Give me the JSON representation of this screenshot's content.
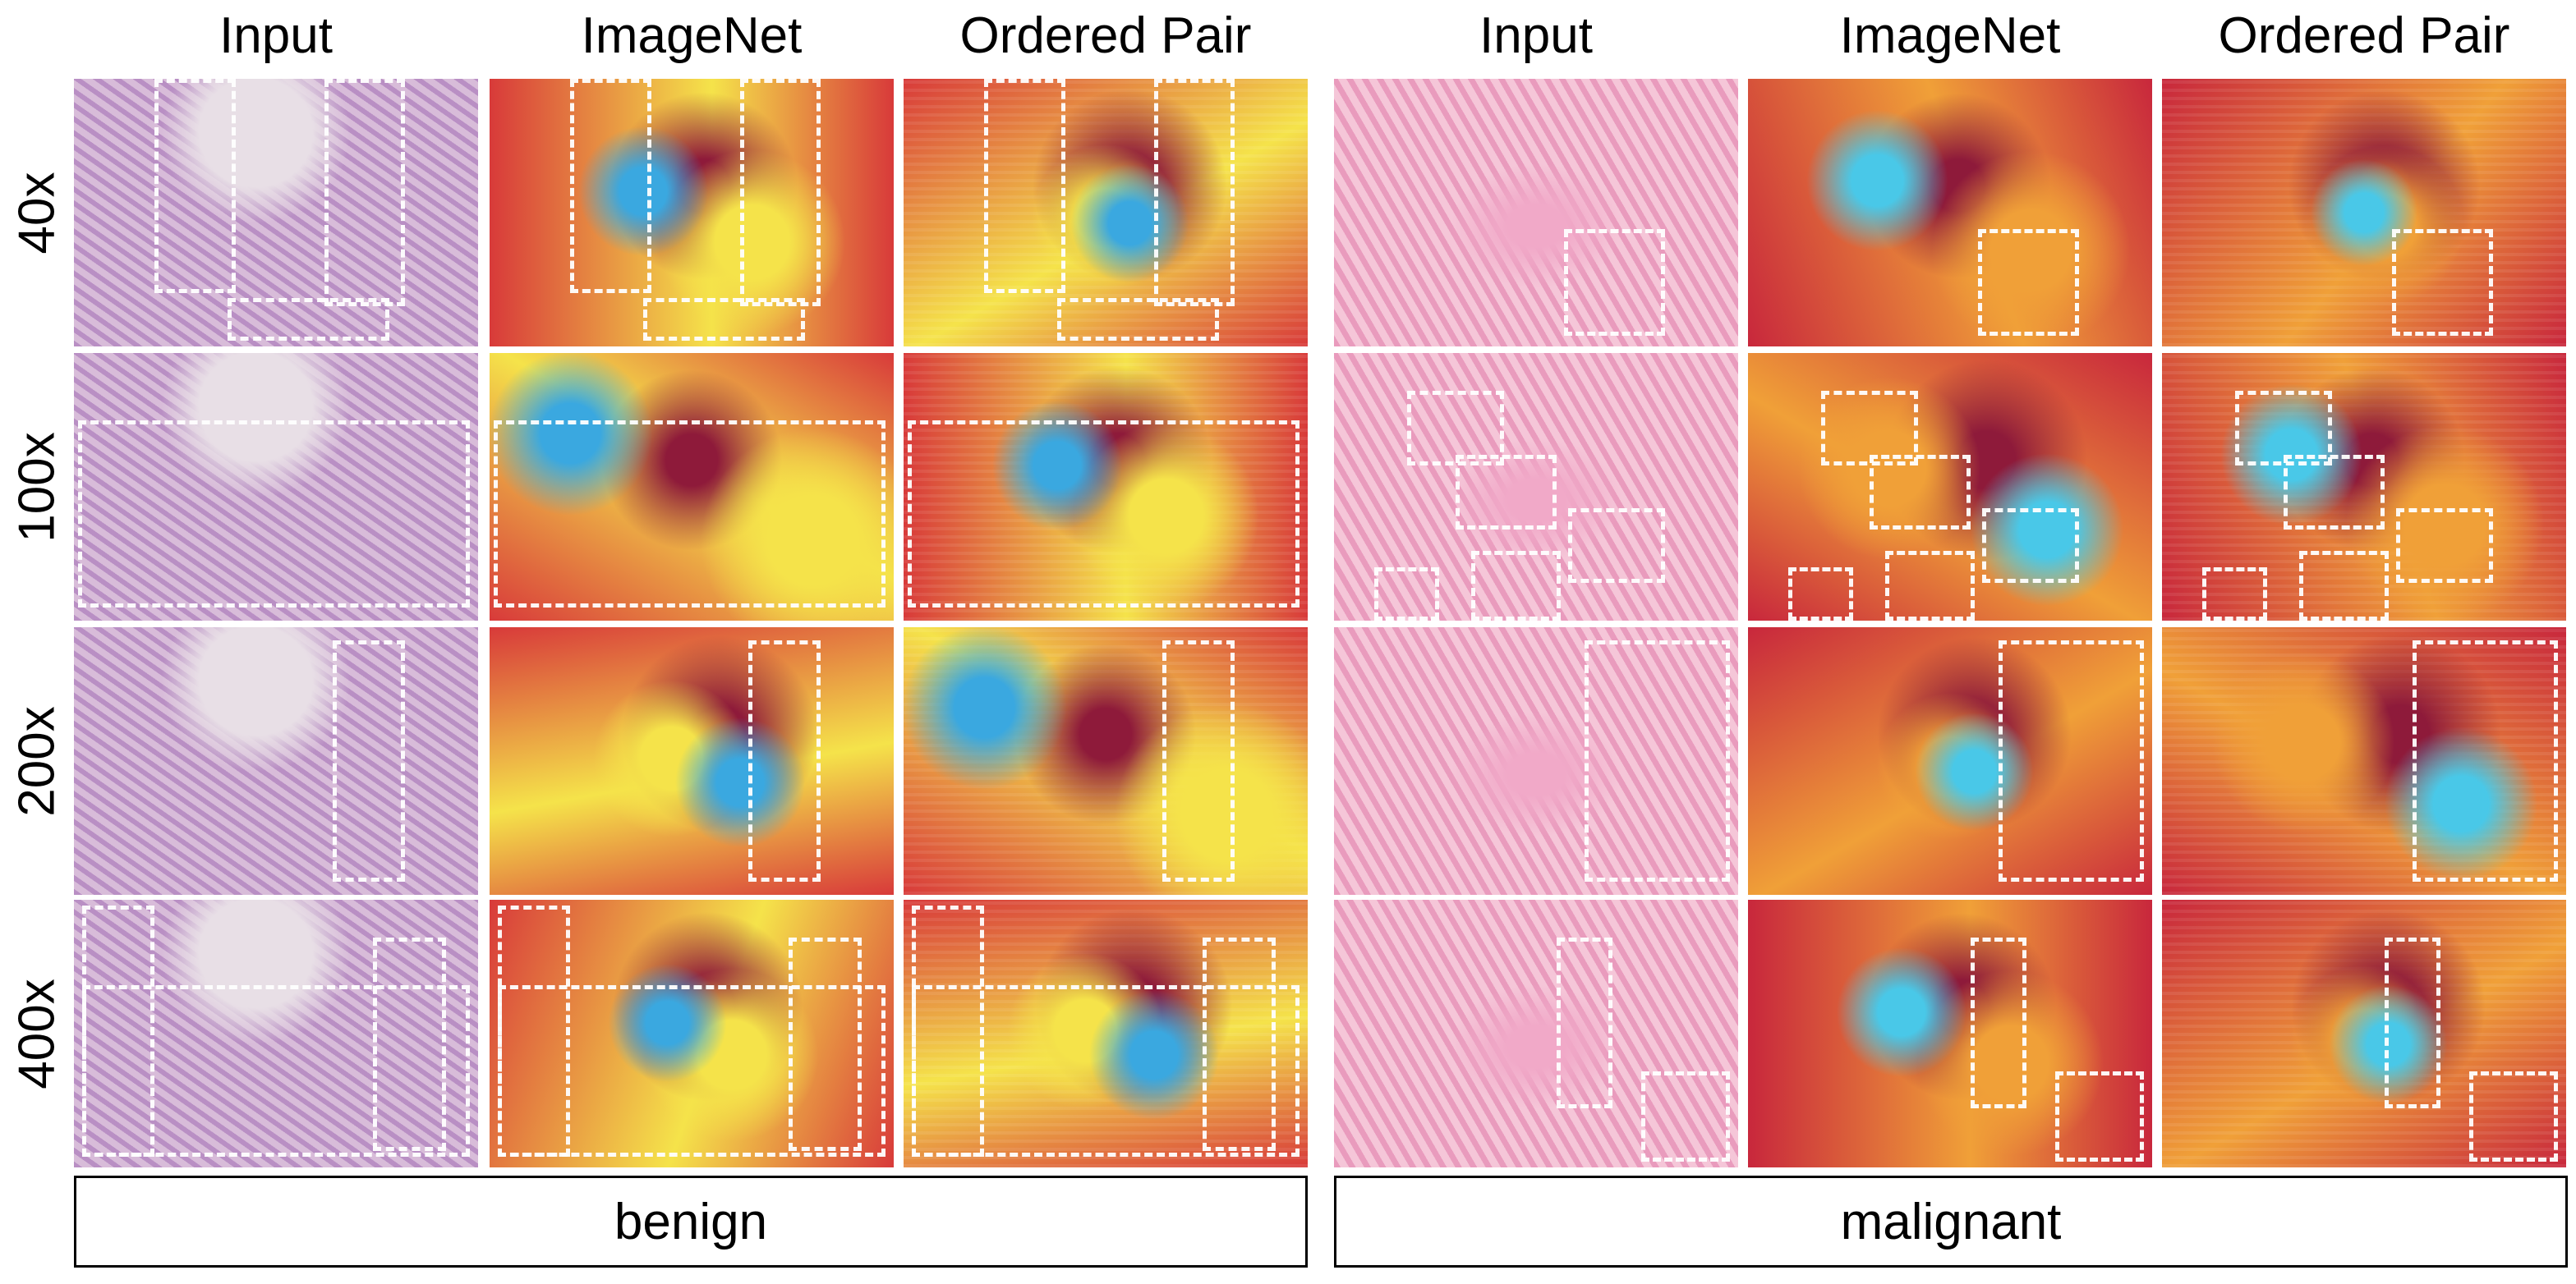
{
  "columns": [
    "Input",
    "ImageNet",
    "Ordered Pair",
    "Input",
    "ImageNet",
    "Ordered Pair"
  ],
  "rows": [
    "40x",
    "100x",
    "200x",
    "400x"
  ],
  "groups": [
    "benign",
    "malignant"
  ]
}
